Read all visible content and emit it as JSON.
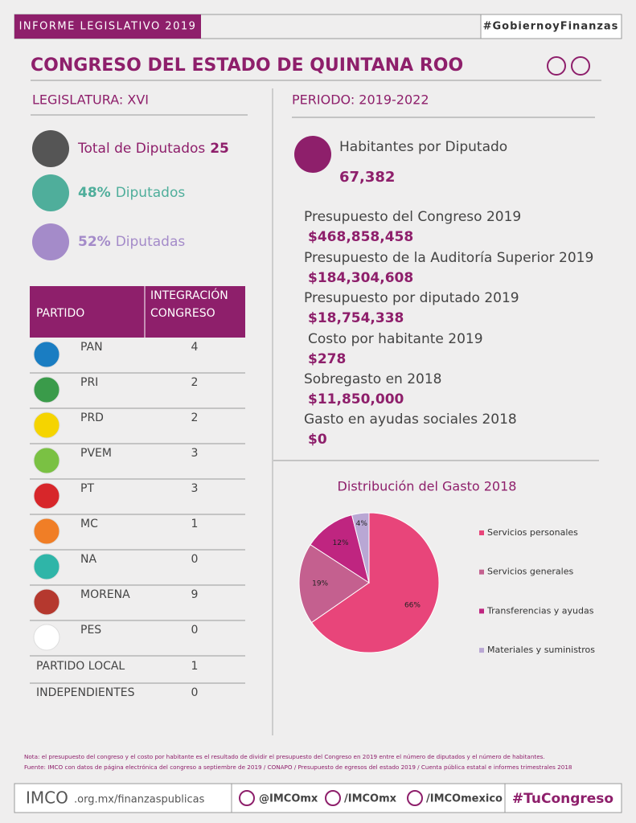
{
  "header": {
    "report": "INFORME LEGISLATIVO 2019",
    "hashtag": "#GobiernoyFinanzas",
    "title": "CONGRESO DEL ESTADO DE QUINTANA ROO"
  },
  "legislatura": "LEGISLATURA: XVI",
  "periodo": "PERIODO: 2019-2022",
  "summary": [
    {
      "label": "Total de Diputados",
      "value": "25"
    },
    {
      "value": "48%",
      "label": "Diputados"
    },
    {
      "value": "52%",
      "label": "Diputadas"
    }
  ],
  "table": {
    "party_header": "PARTIDO",
    "seats_header": [
      "INTEGRACIÓN",
      "CONGRESO"
    ],
    "rows": [
      [
        "PAN",
        4
      ],
      [
        "PRI",
        2
      ],
      [
        "PRD",
        2
      ],
      [
        "PVEM",
        3
      ],
      [
        "PT",
        3
      ],
      [
        "MC",
        1
      ],
      [
        "NA",
        0
      ],
      [
        "MORENA",
        9
      ],
      [
        "PES",
        0
      ],
      [
        "PARTIDO LOCAL",
        1
      ],
      [
        "INDEPENDIENTES",
        0
      ]
    ]
  },
  "habitantes": {
    "label": "Habitantes por Diputado",
    "value": "67,382"
  },
  "budget": [
    {
      "label": "Presupuesto del Congreso 2019",
      "value": "$468,858,458"
    },
    {
      "label": "Presupuesto de la Auditoría Superior 2019",
      "value": "$184,304,608"
    },
    {
      "label": "Presupuesto por diputado 2019",
      "value": "$18,754,338"
    },
    {
      "label": "Costo por habitante 2019",
      "value": "$278"
    },
    {
      "label": "Sobregasto en 2018",
      "value": "$11,850,000"
    },
    {
      "label": "Gasto en ayudas sociales 2018",
      "value": "$0"
    }
  ],
  "chart_data": {
    "type": "pie",
    "title": "Distribución del Gasto 2018",
    "categories": [
      "Servicios personales",
      "Servicios generales",
      "Transferencias y ayudas",
      "Materiales y suministros"
    ],
    "values": [
      66,
      19,
      12,
      4
    ],
    "value_labels": [
      "66%",
      "19%",
      "12%",
      "4%"
    ],
    "colors": [
      "#e8457a",
      "#c4608f",
      "#bf2580",
      "#b9a7d4"
    ],
    "legend": "right"
  },
  "notes": [
    "Nota: el presupuesto del congreso y el costo por habitante es el resultado de dividir el presupuesto del Congreso en 2019 entre el número de diputados y el número de habitantes.",
    "Fuente: IMCO con datos de página electrónica del congreso a septiembre de 2019 / CONAPO / Presupuesto de egresos del estado 2019 / Cuenta pública estatal e informes trimestrales 2018"
  ],
  "footer": {
    "logo": "IMCO",
    "url": ".org.mx/finanzaspublicas",
    "twitter": "@IMCOmx",
    "facebook": "/IMCOmx",
    "youtube": "/IMCOmexico",
    "hashtag": "#TuCongreso"
  }
}
